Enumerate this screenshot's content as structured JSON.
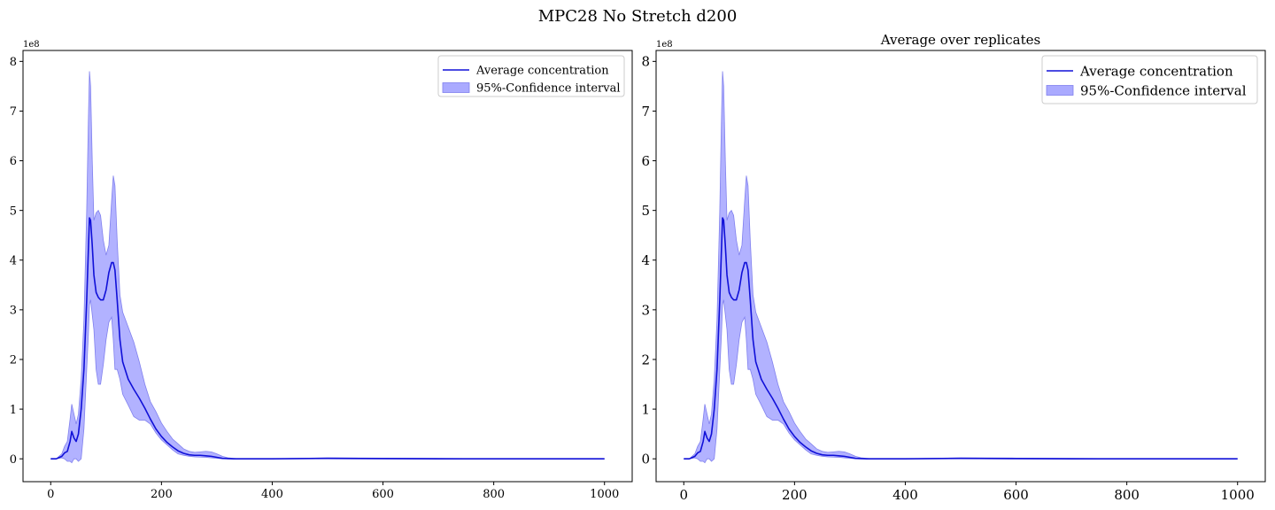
{
  "figure": {
    "title": "MPC28 No Stretch d200"
  },
  "colors": {
    "line": "#1010d8",
    "band": "#aaaaff",
    "band_edge": "#8080ee"
  },
  "chart_data": [
    {
      "type": "line",
      "title": "",
      "xlabel": "",
      "ylabel": "",
      "offset_text": "1e8",
      "xlim": [
        -50,
        1050
      ],
      "ylim": [
        -0.46,
        8.22
      ],
      "x_ticks": [
        0,
        200,
        400,
        600,
        800,
        1000
      ],
      "x_tick_labels": [
        "0",
        "200",
        "400",
        "600",
        "800",
        "1000"
      ],
      "y_ticks": [
        0,
        1,
        2,
        3,
        4,
        5,
        6,
        7,
        8
      ],
      "y_tick_labels": [
        "0",
        "1",
        "2",
        "3",
        "4",
        "5",
        "6",
        "7",
        "8"
      ],
      "legend": {
        "placement": "top-right",
        "entries": [
          "Average concentration",
          "95%-Confidence interval"
        ]
      },
      "series": [
        {
          "name": "Average concentration",
          "x": [
            0,
            10,
            20,
            25,
            30,
            35,
            38,
            42,
            46,
            50,
            55,
            60,
            65,
            68,
            70,
            72,
            75,
            78,
            82,
            86,
            90,
            95,
            100,
            105,
            110,
            113,
            116,
            120,
            125,
            130,
            140,
            150,
            160,
            170,
            180,
            190,
            200,
            210,
            220,
            230,
            240,
            250,
            260,
            270,
            280,
            290,
            300,
            310,
            320,
            330,
            340,
            350,
            400,
            500,
            600,
            700,
            800,
            900,
            1000
          ],
          "y": [
            0,
            0,
            0.05,
            0.12,
            0.15,
            0.35,
            0.55,
            0.42,
            0.35,
            0.5,
            1.0,
            1.8,
            3.2,
            4.2,
            4.85,
            4.8,
            4.3,
            3.7,
            3.35,
            3.25,
            3.2,
            3.2,
            3.4,
            3.75,
            3.95,
            3.95,
            3.8,
            3.2,
            2.4,
            1.95,
            1.6,
            1.4,
            1.22,
            1.02,
            0.8,
            0.6,
            0.45,
            0.33,
            0.24,
            0.16,
            0.11,
            0.08,
            0.07,
            0.07,
            0.06,
            0.05,
            0.03,
            0.01,
            0.005,
            0,
            0,
            0,
            0,
            0.01,
            0.005,
            0,
            0,
            0,
            0
          ]
        },
        {
          "name": "95%-Confidence interval",
          "x": [
            0,
            10,
            20,
            25,
            30,
            35,
            38,
            42,
            46,
            50,
            55,
            60,
            65,
            68,
            70,
            72,
            75,
            78,
            82,
            86,
            90,
            95,
            100,
            105,
            110,
            113,
            116,
            120,
            125,
            130,
            140,
            150,
            160,
            170,
            180,
            190,
            200,
            210,
            220,
            230,
            240,
            250,
            260,
            270,
            280,
            290,
            300,
            310,
            320,
            330,
            340,
            350,
            400,
            500,
            600,
            700,
            800,
            900,
            1000
          ],
          "lower": [
            0,
            0,
            0.02,
            0.0,
            -0.05,
            -0.05,
            -0.08,
            0.0,
            0.0,
            -0.05,
            0.0,
            0.6,
            1.8,
            2.5,
            3.1,
            3.2,
            2.9,
            2.6,
            1.8,
            1.5,
            1.5,
            1.9,
            2.4,
            2.75,
            2.85,
            2.4,
            1.8,
            1.8,
            1.6,
            1.3,
            1.08,
            0.85,
            0.78,
            0.78,
            0.7,
            0.52,
            0.38,
            0.28,
            0.18,
            0.1,
            0.07,
            0.05,
            0.04,
            0.035,
            0.03,
            0.02,
            0.01,
            0.0,
            0,
            0,
            0,
            0,
            0,
            0,
            0,
            0,
            0,
            0,
            0
          ],
          "upper": [
            0,
            0,
            0.1,
            0.25,
            0.35,
            0.8,
            1.1,
            0.9,
            0.7,
            0.9,
            1.6,
            2.8,
            5.0,
            6.8,
            7.8,
            7.5,
            6.0,
            4.8,
            4.95,
            5.0,
            4.9,
            4.4,
            4.1,
            4.3,
            5.2,
            5.7,
            5.5,
            4.4,
            3.3,
            2.95,
            2.65,
            2.35,
            1.95,
            1.5,
            1.15,
            0.95,
            0.72,
            0.55,
            0.4,
            0.3,
            0.2,
            0.15,
            0.13,
            0.14,
            0.15,
            0.14,
            0.1,
            0.05,
            0.02,
            0.01,
            0,
            0,
            0,
            0.02,
            0.015,
            0.01,
            0,
            0,
            0
          ]
        }
      ]
    },
    {
      "type": "line",
      "title": "Average over replicates",
      "xlabel": "",
      "ylabel": "",
      "offset_text": "1e8",
      "xlim": [
        -50,
        1050
      ],
      "ylim": [
        -0.46,
        8.22
      ],
      "x_ticks": [
        0,
        200,
        400,
        600,
        800,
        1000
      ],
      "x_tick_labels": [
        "0",
        "200",
        "400",
        "600",
        "800",
        "1000"
      ],
      "y_ticks": [
        0,
        1,
        2,
        3,
        4,
        5,
        6,
        7,
        8
      ],
      "y_tick_labels": [
        "0",
        "1",
        "2",
        "3",
        "4",
        "5",
        "6",
        "7",
        "8"
      ],
      "legend": {
        "placement": "top-right",
        "entries": [
          "Average concentration",
          "95%-Confidence interval"
        ]
      },
      "series": [
        {
          "name": "Average concentration",
          "x": [
            0,
            10,
            20,
            25,
            30,
            35,
            38,
            42,
            46,
            50,
            55,
            60,
            65,
            68,
            70,
            72,
            75,
            78,
            82,
            86,
            90,
            95,
            100,
            105,
            110,
            113,
            116,
            120,
            125,
            130,
            140,
            150,
            160,
            170,
            180,
            190,
            200,
            210,
            220,
            230,
            240,
            250,
            260,
            270,
            280,
            290,
            300,
            310,
            320,
            330,
            340,
            350,
            400,
            500,
            600,
            700,
            800,
            900,
            1000
          ],
          "y": [
            0,
            0,
            0.05,
            0.12,
            0.15,
            0.35,
            0.55,
            0.42,
            0.35,
            0.5,
            1.0,
            1.8,
            3.2,
            4.2,
            4.85,
            4.8,
            4.3,
            3.7,
            3.35,
            3.25,
            3.2,
            3.2,
            3.4,
            3.75,
            3.95,
            3.95,
            3.8,
            3.2,
            2.4,
            1.95,
            1.6,
            1.4,
            1.22,
            1.02,
            0.8,
            0.6,
            0.45,
            0.33,
            0.24,
            0.16,
            0.11,
            0.08,
            0.07,
            0.07,
            0.06,
            0.05,
            0.03,
            0.01,
            0.005,
            0,
            0,
            0,
            0,
            0.01,
            0.005,
            0,
            0,
            0,
            0
          ]
        },
        {
          "name": "95%-Confidence interval",
          "x": [
            0,
            10,
            20,
            25,
            30,
            35,
            38,
            42,
            46,
            50,
            55,
            60,
            65,
            68,
            70,
            72,
            75,
            78,
            82,
            86,
            90,
            95,
            100,
            105,
            110,
            113,
            116,
            120,
            125,
            130,
            140,
            150,
            160,
            170,
            180,
            190,
            200,
            210,
            220,
            230,
            240,
            250,
            260,
            270,
            280,
            290,
            300,
            310,
            320,
            330,
            340,
            350,
            400,
            500,
            600,
            700,
            800,
            900,
            1000
          ],
          "lower": [
            0,
            0,
            0.02,
            0.0,
            -0.05,
            -0.05,
            -0.08,
            0.0,
            0.0,
            -0.05,
            0.0,
            0.6,
            1.8,
            2.5,
            3.1,
            3.2,
            2.9,
            2.6,
            1.8,
            1.5,
            1.5,
            1.9,
            2.4,
            2.75,
            2.85,
            2.4,
            1.8,
            1.8,
            1.6,
            1.3,
            1.08,
            0.85,
            0.78,
            0.78,
            0.7,
            0.52,
            0.38,
            0.28,
            0.18,
            0.1,
            0.07,
            0.05,
            0.04,
            0.035,
            0.03,
            0.02,
            0.01,
            0.0,
            0,
            0,
            0,
            0,
            0,
            0,
            0,
            0,
            0,
            0,
            0
          ],
          "upper": [
            0,
            0,
            0.1,
            0.25,
            0.35,
            0.8,
            1.1,
            0.9,
            0.7,
            0.9,
            1.6,
            2.8,
            5.0,
            6.8,
            7.8,
            7.5,
            6.0,
            4.8,
            4.95,
            5.0,
            4.9,
            4.4,
            4.1,
            4.3,
            5.2,
            5.7,
            5.5,
            4.4,
            3.3,
            2.95,
            2.65,
            2.35,
            1.95,
            1.5,
            1.15,
            0.95,
            0.72,
            0.55,
            0.4,
            0.3,
            0.2,
            0.15,
            0.13,
            0.14,
            0.15,
            0.14,
            0.1,
            0.05,
            0.02,
            0.01,
            0,
            0,
            0,
            0.02,
            0.015,
            0.01,
            0,
            0,
            0
          ]
        }
      ]
    }
  ]
}
